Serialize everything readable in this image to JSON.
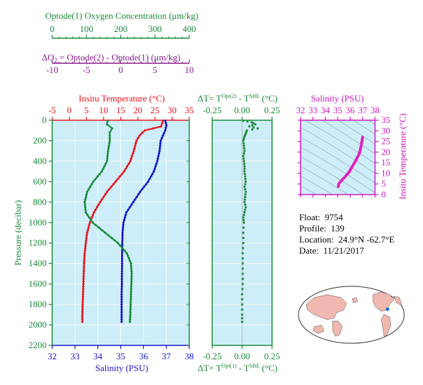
{
  "colors": {
    "oxygen": "#1a8a3a",
    "delta_o2": "#8a1a8a",
    "temperature": "#e8141e",
    "salinity": "#1414c8",
    "pressure_axis": "#1a8a3a",
    "panel_bg": "#cdeef8",
    "ts_lines": "#8a9aa8",
    "ts_curve": "#e020c0",
    "map_land": "#f0b8b0",
    "map_marker": "#1a6ad0"
  },
  "axis_labels": {
    "oxygen": "Optode(1) Oxygen Concentration (μm/kg)",
    "delta_o2_prefix": "ΔO",
    "delta_o2_sub": "2",
    "delta_o2_rest": " = Optode(2) - Optode(1)   (μm/kg)",
    "temperature": "Insitu Temperature (°C)",
    "salinity": "Salinity (PSU)",
    "pressure": "Pressure (decibar)",
    "dt_top_a": "ΔT= T",
    "dt_top_sup": "Opt(2)",
    "dt_top_b": " - T",
    "dt_top_sup2": "SBE",
    "dt_top_c": " (°C)",
    "dt_bot_a": "ΔT= T",
    "dt_bot_sup": "Opt(1)",
    "dt_bot_b": " - T",
    "dt_bot_sup2": "SBE",
    "dt_bot_c": " (°C)",
    "ts_salinity": "Salinity (PSU)",
    "ts_temperature": "Insitu Temperature (°C)"
  },
  "info": {
    "float_label": "Float:",
    "float_value": "9754",
    "profile_label": "Profile:",
    "profile_value": "139",
    "location_label": "Location:",
    "location_value": "24.9°N  -62.7°E",
    "date_label": "Date:",
    "date_value": "11/21/2017"
  },
  "chart_data": [
    {
      "type": "line",
      "panel": "profiles",
      "y_axis": {
        "label": "Pressure (decibar)",
        "range": [
          0,
          2200
        ],
        "inverted": true,
        "ticks": [
          "0",
          "200",
          "400",
          "600",
          "800",
          "1000",
          "1200",
          "1400",
          "1600",
          "1800",
          "2000",
          "2200"
        ]
      },
      "x_axes": {
        "oxygen": {
          "range": [
            0,
            400
          ],
          "ticks": [
            "0",
            "100",
            "200",
            "300",
            "400"
          ]
        },
        "delta_o2": {
          "range": [
            -10,
            10
          ],
          "ticks": [
            "-10",
            "-5",
            "0",
            "5",
            "10"
          ]
        },
        "temperature": {
          "range": [
            -5,
            35
          ],
          "ticks": [
            "-5",
            "0",
            "5",
            "10",
            "15",
            "20",
            "25",
            "30",
            "35"
          ]
        },
        "salinity": {
          "range": [
            32,
            38
          ],
          "ticks": [
            "32",
            "33",
            "34",
            "35",
            "36",
            "37",
            "38"
          ]
        }
      },
      "series": [
        {
          "name": "Insitu Temperature (°C)",
          "axis": "temperature",
          "pressure": [
            5,
            30,
            60,
            80,
            100,
            150,
            200,
            300,
            400,
            500,
            600,
            700,
            800,
            900,
            1000,
            1100,
            1200,
            1300,
            1400,
            1500,
            1600,
            1700,
            1800,
            1900,
            1970
          ],
          "values": [
            27.3,
            27.1,
            26.8,
            24.5,
            22.0,
            20.5,
            19.6,
            18.8,
            17.8,
            16.0,
            13.5,
            11.0,
            9.0,
            7.2,
            6.0,
            5.2,
            4.8,
            4.5,
            4.3,
            4.2,
            4.1,
            4.0,
            3.9,
            3.8,
            3.8
          ]
        },
        {
          "name": "Salinity (PSU)",
          "axis": "salinity",
          "pressure": [
            5,
            50,
            100,
            150,
            200,
            300,
            400,
            500,
            600,
            700,
            800,
            900,
            1000,
            1100,
            1200,
            1300,
            1400,
            1500,
            1600,
            1700,
            1800,
            1900,
            1970
          ],
          "values": [
            36.95,
            37.0,
            36.95,
            36.85,
            36.75,
            36.7,
            36.6,
            36.45,
            36.2,
            35.85,
            35.55,
            35.25,
            35.12,
            35.08,
            35.07,
            35.06,
            35.06,
            35.05,
            35.05,
            35.04,
            35.04,
            35.04,
            35.04
          ]
        },
        {
          "name": "Optode(1) Oxygen Concentration (μm/kg)",
          "axis": "oxygen",
          "pressure": [
            5,
            40,
            80,
            120,
            200,
            300,
            400,
            500,
            600,
            700,
            800,
            900,
            1000,
            1100,
            1200,
            1300,
            1400,
            1500,
            1600,
            1700,
            1800,
            1900,
            1970
          ],
          "values": [
            162,
            160,
            175,
            168,
            168,
            163,
            160,
            145,
            120,
            102,
            95,
            98,
            118,
            155,
            192,
            218,
            230,
            232,
            231,
            230,
            229,
            228,
            227
          ]
        }
      ]
    },
    {
      "type": "scatter",
      "panel": "delta_t",
      "x_axis_top": {
        "range": [
          -0.25,
          0.25
        ],
        "ticks": [
          "-0.25",
          "0.00",
          "0.25"
        ]
      },
      "x_axis_bottom": {
        "range": [
          -0.25,
          0.25
        ],
        "ticks": [
          "-0.25",
          "0.00",
          "0.25"
        ]
      },
      "y_axis": {
        "range": [
          0,
          2200
        ],
        "inverted": true
      },
      "pressure": [
        5,
        20,
        40,
        60,
        80,
        100,
        130,
        160,
        200,
        250,
        300,
        350,
        400,
        450,
        500,
        550,
        600,
        650,
        700,
        750,
        800,
        850,
        900,
        950,
        1000,
        1100,
        1200,
        1300,
        1400,
        1500,
        1600,
        1700,
        1800,
        1900,
        1970
      ],
      "values": [
        0.01,
        0.08,
        0.11,
        0.06,
        0.13,
        0.04,
        0.03,
        0.02,
        0.01,
        0.015,
        0.02,
        0.01,
        0.015,
        0.02,
        0.02,
        0.025,
        0.03,
        0.02,
        0.03,
        0.025,
        0.02,
        0.03,
        0.02,
        0.01,
        0.015,
        0.01,
        0.01,
        0.005,
        0.005,
        0.005,
        0.005,
        0.0,
        0.0,
        0.0,
        0.0
      ]
    },
    {
      "type": "line",
      "panel": "ts_diagram",
      "x_axis": {
        "label": "Salinity (PSU)",
        "range": [
          32,
          38
        ],
        "ticks": [
          "32",
          "33",
          "34",
          "35",
          "36",
          "37",
          "38"
        ]
      },
      "y_axis": {
        "label": "Insitu Temperature (°C)",
        "range": [
          0,
          35
        ],
        "ticks": [
          "0",
          "5",
          "10",
          "15",
          "20",
          "25",
          "30",
          "35"
        ]
      },
      "salinity": [
        35.04,
        35.06,
        35.08,
        35.2,
        35.5,
        35.9,
        36.2,
        36.45,
        36.6,
        36.7,
        36.75,
        36.85,
        36.95,
        37.0
      ],
      "temperature": [
        3.8,
        4.3,
        5.0,
        6.0,
        7.8,
        10.5,
        13.5,
        16.0,
        17.8,
        18.8,
        19.6,
        22.0,
        25.0,
        27.0
      ]
    }
  ]
}
